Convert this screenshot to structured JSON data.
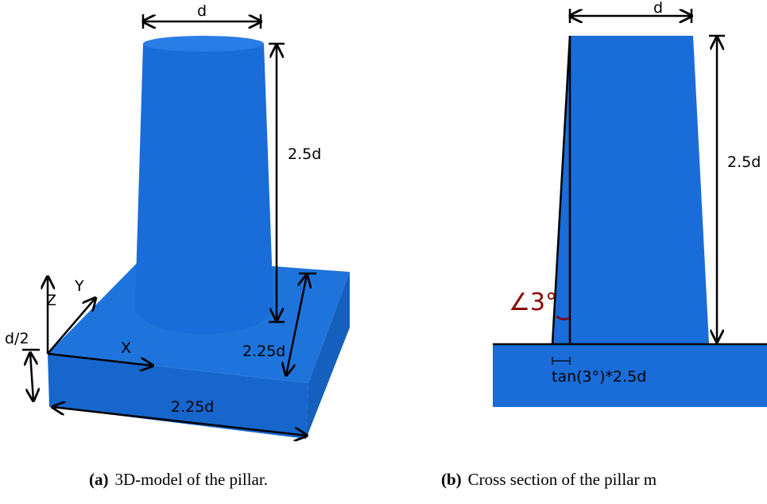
{
  "panels": [
    {
      "labels": {
        "top": "d",
        "height": "2.5d",
        "depth": "2.25d",
        "width": "2.25d",
        "thickness": "d/2",
        "x": "X",
        "y": "Y",
        "z": "Z"
      },
      "caption": {
        "tag": "(a)",
        "text": "3D-model of the pillar."
      }
    },
    {
      "labels": {
        "top": "d",
        "height": "2.5d",
        "angle": "∠3°",
        "offset": "tan(3°)*2.5d"
      },
      "caption": {
        "tag": "(b)",
        "text": "Cross section of the pillar m"
      }
    }
  ]
}
